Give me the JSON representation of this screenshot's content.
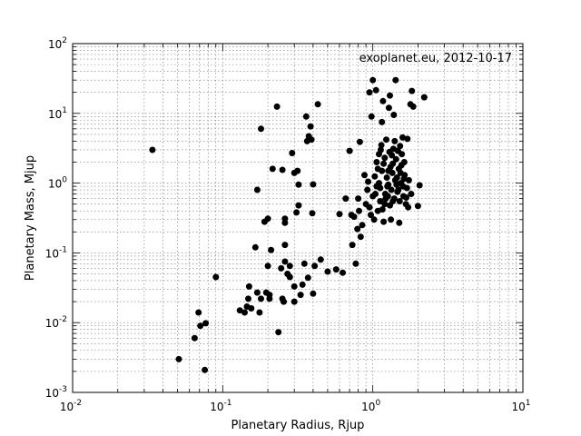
{
  "chart_data": {
    "type": "scatter",
    "title": "",
    "annotation": "exoplanet.eu, 2012-10-17",
    "xlabel": "Planetary Radius, Rjup",
    "ylabel": "Planetary Mass, Mjup",
    "xscale": "log",
    "yscale": "log",
    "xlim": [
      0.01,
      10
    ],
    "ylim": [
      0.001,
      100
    ],
    "xticks": [
      0.01,
      0.1,
      1,
      10
    ],
    "yticks": [
      0.001,
      0.01,
      0.1,
      1,
      10,
      100
    ],
    "xtick_labels": [
      {
        "base": "10",
        "exp": "-2"
      },
      {
        "base": "10",
        "exp": "-1"
      },
      {
        "base": "10",
        "exp": "0"
      },
      {
        "base": "10",
        "exp": "1"
      }
    ],
    "ytick_labels": [
      {
        "base": "10",
        "exp": "-3"
      },
      {
        "base": "10",
        "exp": "-2"
      },
      {
        "base": "10",
        "exp": "-1"
      },
      {
        "base": "10",
        "exp": "0"
      },
      {
        "base": "10",
        "exp": "1"
      },
      {
        "base": "10",
        "exp": "2"
      }
    ],
    "grid": true,
    "marker_color": "#000000",
    "points": [
      [
        0.034,
        3.0
      ],
      [
        0.051,
        0.003
      ],
      [
        0.065,
        0.006
      ],
      [
        0.069,
        0.014
      ],
      [
        0.071,
        0.009
      ],
      [
        0.076,
        0.0021
      ],
      [
        0.077,
        0.0098
      ],
      [
        0.09,
        0.045
      ],
      [
        0.13,
        0.015
      ],
      [
        0.14,
        0.014
      ],
      [
        0.145,
        0.017
      ],
      [
        0.148,
        0.022
      ],
      [
        0.15,
        0.033
      ],
      [
        0.155,
        0.016
      ],
      [
        0.165,
        0.12
      ],
      [
        0.17,
        0.027
      ],
      [
        0.17,
        0.8
      ],
      [
        0.176,
        0.014
      ],
      [
        0.18,
        0.022
      ],
      [
        0.18,
        6.0
      ],
      [
        0.19,
        0.28
      ],
      [
        0.195,
        0.027
      ],
      [
        0.2,
        0.065
      ],
      [
        0.2,
        0.31
      ],
      [
        0.205,
        0.025
      ],
      [
        0.205,
        0.022
      ],
      [
        0.21,
        0.11
      ],
      [
        0.215,
        1.6
      ],
      [
        0.23,
        12.5
      ],
      [
        0.235,
        0.0073
      ],
      [
        0.245,
        0.06
      ],
      [
        0.25,
        0.022
      ],
      [
        0.25,
        1.55
      ],
      [
        0.255,
        0.02
      ],
      [
        0.26,
        0.27
      ],
      [
        0.26,
        0.31
      ],
      [
        0.26,
        0.13
      ],
      [
        0.26,
        0.075
      ],
      [
        0.27,
        0.05
      ],
      [
        0.28,
        0.045
      ],
      [
        0.28,
        0.065
      ],
      [
        0.29,
        2.7
      ],
      [
        0.3,
        0.02
      ],
      [
        0.3,
        0.033
      ],
      [
        0.3,
        1.4
      ],
      [
        0.31,
        0.38
      ],
      [
        0.315,
        1.5
      ],
      [
        0.32,
        0.48
      ],
      [
        0.32,
        0.95
      ],
      [
        0.33,
        0.025
      ],
      [
        0.34,
        0.035
      ],
      [
        0.36,
        9.0
      ],
      [
        0.35,
        0.07
      ],
      [
        0.365,
        4.0
      ],
      [
        0.37,
        0.044
      ],
      [
        0.375,
        4.7
      ],
      [
        0.385,
        6.5
      ],
      [
        0.39,
        4.2
      ],
      [
        0.395,
        0.37
      ],
      [
        0.4,
        0.96
      ],
      [
        0.4,
        0.026
      ],
      [
        0.41,
        0.065
      ],
      [
        0.43,
        13.5
      ],
      [
        0.45,
        0.08
      ],
      [
        0.5,
        0.054
      ],
      [
        0.57,
        0.058
      ],
      [
        0.6,
        0.36
      ],
      [
        0.63,
        0.052
      ],
      [
        0.66,
        0.6
      ],
      [
        0.7,
        2.9
      ],
      [
        0.72,
        0.35
      ],
      [
        0.73,
        0.13
      ],
      [
        0.75,
        0.33
      ],
      [
        0.77,
        0.07
      ],
      [
        0.79,
        0.22
      ],
      [
        0.8,
        0.6
      ],
      [
        0.81,
        0.4
      ],
      [
        0.82,
        3.9
      ],
      [
        0.83,
        0.17
      ],
      [
        0.85,
        0.25
      ],
      [
        0.88,
        1.3
      ],
      [
        0.9,
        0.5
      ],
      [
        0.92,
        0.8
      ],
      [
        0.95,
        0.45
      ],
      [
        0.95,
        20.0
      ],
      [
        0.98,
        9.0
      ],
      [
        1.0,
        30.0
      ],
      [
        1.02,
        0.3
      ],
      [
        1.04,
        0.7
      ],
      [
        1.05,
        21.5
      ],
      [
        1.06,
        2.0
      ],
      [
        1.08,
        0.4
      ],
      [
        1.1,
        1.0
      ],
      [
        1.12,
        0.55
      ],
      [
        1.13,
        3.0
      ],
      [
        1.15,
        7.5
      ],
      [
        1.17,
        15.0
      ],
      [
        1.18,
        0.28
      ],
      [
        1.2,
        2.3
      ],
      [
        1.22,
        0.6
      ],
      [
        1.23,
        4.2
      ],
      [
        1.25,
        0.9
      ],
      [
        1.27,
        1.5
      ],
      [
        1.28,
        12.0
      ],
      [
        1.3,
        18.0
      ],
      [
        1.32,
        0.3
      ],
      [
        1.34,
        2.5
      ],
      [
        1.36,
        0.55
      ],
      [
        1.38,
        9.5
      ],
      [
        1.4,
        4.0
      ],
      [
        1.42,
        30.0
      ],
      [
        1.45,
        1.2
      ],
      [
        1.48,
        0.8
      ],
      [
        1.5,
        0.27
      ],
      [
        1.52,
        3.4
      ],
      [
        1.55,
        1.8
      ],
      [
        1.58,
        4.5
      ],
      [
        1.6,
        0.65
      ],
      [
        1.62,
        2.0
      ],
      [
        1.66,
        0.5
      ],
      [
        1.7,
        4.3
      ],
      [
        1.72,
        0.45
      ],
      [
        1.74,
        1.1
      ],
      [
        1.78,
        13.5
      ],
      [
        1.8,
        0.7
      ],
      [
        1.82,
        21.0
      ],
      [
        1.86,
        12.5
      ],
      [
        2.0,
        0.47
      ],
      [
        2.05,
        0.93
      ],
      [
        2.2,
        17.0
      ],
      [
        1.15,
        1.5
      ],
      [
        1.18,
        1.9
      ],
      [
        1.2,
        0.5
      ],
      [
        1.24,
        1.2
      ],
      [
        1.26,
        0.65
      ],
      [
        1.29,
        2.8
      ],
      [
        1.31,
        1.7
      ],
      [
        1.33,
        0.8
      ],
      [
        1.35,
        1.4
      ],
      [
        1.37,
        3.1
      ],
      [
        1.39,
        0.6
      ],
      [
        1.41,
        1.1
      ],
      [
        1.43,
        2.2
      ],
      [
        1.46,
        0.75
      ],
      [
        1.49,
        1.6
      ],
      [
        1.51,
        0.55
      ],
      [
        1.54,
        1.0
      ],
      [
        1.56,
        2.6
      ],
      [
        1.59,
        0.9
      ],
      [
        1.63,
        1.3
      ],
      [
        1.67,
        0.62
      ],
      [
        1.1,
        2.6
      ],
      [
        1.12,
        0.85
      ],
      [
        1.14,
        3.5
      ],
      [
        1.08,
        1.6
      ],
      [
        1.06,
        0.9
      ],
      [
        1.03,
        1.25
      ],
      [
        1.0,
        0.65
      ],
      [
        0.97,
        0.35
      ],
      [
        0.93,
        1.05
      ],
      [
        1.16,
        0.42
      ],
      [
        1.21,
        0.7
      ],
      [
        1.27,
        0.95
      ],
      [
        1.3,
        0.48
      ],
      [
        1.36,
        1.9
      ],
      [
        1.44,
        0.95
      ],
      [
        1.47,
        2.9
      ],
      [
        1.53,
        1.4
      ],
      [
        1.61,
        1.15
      ],
      [
        1.69,
        0.85
      ]
    ]
  }
}
